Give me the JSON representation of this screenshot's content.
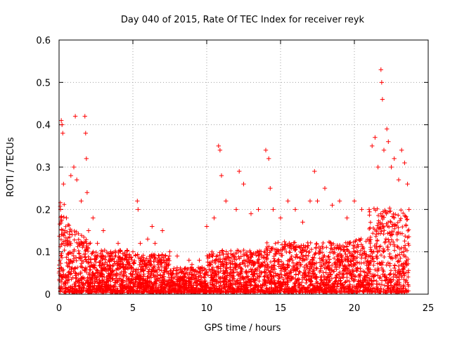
{
  "chart_data": {
    "type": "scatter",
    "title": "Day 040 of 2015, Rate Of TEC Index for receiver reyk",
    "xlabel": "GPS time / hours",
    "ylabel": "ROTI / TECUs",
    "xlim": [
      0,
      25
    ],
    "ylim": [
      0,
      0.6
    ],
    "x_ticks": [
      0,
      5,
      10,
      15,
      20,
      25
    ],
    "y_ticks": [
      0,
      0.1,
      0.2,
      0.3,
      0.4,
      0.5,
      0.6
    ],
    "x_tick_labels": [
      "0",
      "5",
      "10",
      "15",
      "20",
      "25"
    ],
    "y_tick_labels": [
      "0",
      "0.1",
      "0.2",
      "0.3",
      "0.4",
      "0.5",
      "0.6"
    ],
    "grid": true,
    "marker": "+",
    "marker_color": "#ff0000",
    "series": [
      {
        "name": "ROTI",
        "x": [
          0.0,
          0.1,
          0.15,
          0.2,
          0.25,
          0.3,
          0.5,
          0.8,
          1.0,
          1.1,
          1.2,
          1.5,
          1.75,
          1.8,
          1.85,
          1.9,
          2.0,
          2.3,
          2.6,
          3.0,
          3.5,
          4.0,
          4.5,
          5.0,
          5.3,
          5.35,
          5.5,
          6.0,
          6.3,
          6.5,
          7.0,
          7.5,
          8.0,
          8.5,
          8.8,
          9.0,
          9.5,
          10.0,
          10.5,
          10.8,
          10.9,
          11.0,
          11.3,
          12.0,
          12.2,
          12.5,
          13.0,
          13.5,
          14.0,
          14.2,
          14.3,
          14.5,
          15.0,
          15.5,
          16.0,
          16.5,
          17.0,
          17.3,
          17.5,
          18.0,
          18.5,
          19.0,
          19.5,
          20.0,
          20.5,
          21.0,
          21.2,
          21.4,
          21.6,
          21.8,
          21.85,
          21.9,
          22.0,
          22.2,
          22.3,
          22.5,
          22.7,
          23.0,
          23.2,
          23.4,
          23.6,
          23.7
        ],
        "y": [
          0.05,
          0.2,
          0.41,
          0.4,
          0.38,
          0.26,
          0.18,
          0.28,
          0.3,
          0.42,
          0.27,
          0.22,
          0.42,
          0.38,
          0.32,
          0.24,
          0.15,
          0.18,
          0.12,
          0.15,
          0.1,
          0.12,
          0.09,
          0.1,
          0.22,
          0.2,
          0.12,
          0.13,
          0.16,
          0.12,
          0.15,
          0.1,
          0.09,
          0.06,
          0.08,
          0.07,
          0.08,
          0.16,
          0.18,
          0.35,
          0.34,
          0.28,
          0.22,
          0.2,
          0.29,
          0.26,
          0.19,
          0.2,
          0.34,
          0.32,
          0.25,
          0.2,
          0.18,
          0.22,
          0.2,
          0.17,
          0.22,
          0.29,
          0.22,
          0.25,
          0.21,
          0.22,
          0.18,
          0.22,
          0.2,
          0.2,
          0.35,
          0.37,
          0.3,
          0.53,
          0.5,
          0.46,
          0.34,
          0.39,
          0.36,
          0.3,
          0.32,
          0.27,
          0.34,
          0.31,
          0.26,
          0.2
        ]
      }
    ]
  }
}
